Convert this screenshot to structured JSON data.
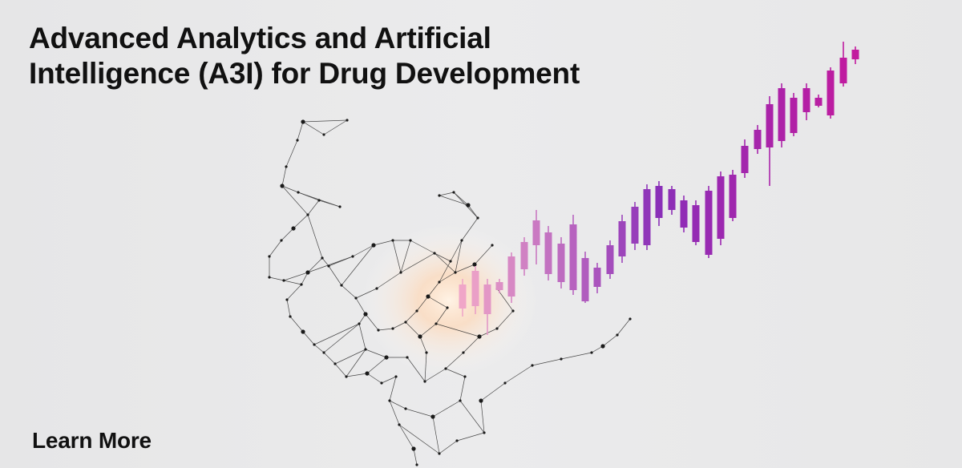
{
  "banner": {
    "title_line1": "Advanced Analytics and Artificial",
    "title_line2": "Intelligence (A3I) for Drug Development",
    "cta_label": "Learn More"
  },
  "illustration": {
    "subject": "wireframe-face-with-candlestick-chart",
    "colors": {
      "background": "#e9e9ea",
      "text": "#111111",
      "wireframe": "#2a2a2a",
      "glow": "#ffd9b8",
      "candle_start": "#f0a6c8",
      "candle_mid": "#8a2fb8",
      "candle_end": "#c21a9e"
    }
  }
}
